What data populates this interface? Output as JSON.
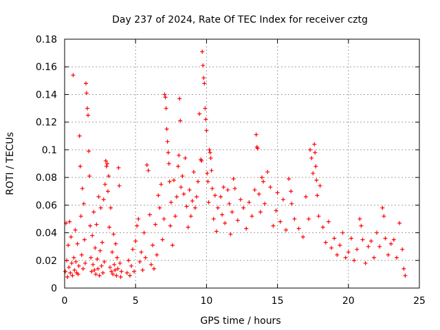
{
  "chart_data": {
    "type": "scatter",
    "title": "Day 237 of 2024, Rate Of TEC Index for receiver cztg",
    "xlabel": "GPS time / hours",
    "ylabel": "ROTI / TECUs",
    "xlim": [
      0,
      25
    ],
    "ylim": [
      0,
      0.18
    ],
    "xticks": [
      0,
      5,
      10,
      15,
      20,
      25
    ],
    "xtick_labels": [
      "0",
      "5",
      "10",
      "15",
      "20",
      "25"
    ],
    "yticks": [
      0,
      0.02,
      0.04,
      0.06,
      0.08,
      0.1,
      0.12,
      0.14,
      0.16,
      0.18
    ],
    "ytick_labels": [
      "0",
      "0.02",
      "0.04",
      "0.06",
      "0.08",
      "0.1",
      "0.12",
      "0.14",
      "0.16",
      "0.18"
    ],
    "grid": true,
    "marker": "+",
    "color": "#ff0000",
    "series": [
      {
        "name": "ROTI",
        "points": [
          [
            0.05,
            0.012
          ],
          [
            0.1,
            0.047
          ],
          [
            0.15,
            0.02
          ],
          [
            0.2,
            0.008
          ],
          [
            0.25,
            0.031
          ],
          [
            0.3,
            0.015
          ],
          [
            0.35,
            0.048
          ],
          [
            0.4,
            0.011
          ],
          [
            0.45,
            0.037
          ],
          [
            0.5,
            0.018
          ],
          [
            0.55,
            0.009
          ],
          [
            0.6,
            0.154
          ],
          [
            0.65,
            0.022
          ],
          [
            0.7,
            0.013
          ],
          [
            0.75,
            0.042
          ],
          [
            0.8,
            0.019
          ],
          [
            0.85,
            0.011
          ],
          [
            0.9,
            0.032
          ],
          [
            0.95,
            0.01
          ],
          [
            1.0,
            0.016
          ],
          [
            1.05,
            0.11
          ],
          [
            1.1,
            0.088
          ],
          [
            1.15,
            0.052
          ],
          [
            1.2,
            0.024
          ],
          [
            1.25,
            0.072
          ],
          [
            1.3,
            0.014
          ],
          [
            1.35,
            0.061
          ],
          [
            1.4,
            0.035
          ],
          [
            1.45,
            0.018
          ],
          [
            1.5,
            0.148
          ],
          [
            1.55,
            0.141
          ],
          [
            1.6,
            0.13
          ],
          [
            1.65,
            0.125
          ],
          [
            1.7,
            0.099
          ],
          [
            1.75,
            0.081
          ],
          [
            1.8,
            0.045
          ],
          [
            1.85,
            0.022
          ],
          [
            1.9,
            0.012
          ],
          [
            1.95,
            0.038
          ],
          [
            2.0,
            0.017
          ],
          [
            2.05,
            0.055
          ],
          [
            2.1,
            0.013
          ],
          [
            2.15,
            0.029
          ],
          [
            2.2,
            0.01
          ],
          [
            2.25,
            0.046
          ],
          [
            2.3,
            0.021
          ],
          [
            2.35,
            0.014
          ],
          [
            2.4,
            0.066
          ],
          [
            2.45,
            0.009
          ],
          [
            2.5,
            0.027
          ],
          [
            2.55,
            0.058
          ],
          [
            2.6,
            0.016
          ],
          [
            2.65,
            0.033
          ],
          [
            2.7,
            0.011
          ],
          [
            2.75,
            0.064
          ],
          [
            2.8,
            0.019
          ],
          [
            2.85,
            0.075
          ],
          [
            2.9,
            0.092
          ],
          [
            2.95,
            0.088
          ],
          [
            3.0,
            0.09
          ],
          [
            3.05,
            0.07
          ],
          [
            3.1,
            0.081
          ],
          [
            3.15,
            0.044
          ],
          [
            3.2,
            0.015
          ],
          [
            3.25,
            0.058
          ],
          [
            3.3,
            0.012
          ],
          [
            3.35,
            0.026
          ],
          [
            3.4,
            0.01
          ],
          [
            3.45,
            0.039
          ],
          [
            3.5,
            0.017
          ],
          [
            3.55,
            0.013
          ],
          [
            3.6,
            0.032
          ],
          [
            3.65,
            0.009
          ],
          [
            3.7,
            0.022
          ],
          [
            3.75,
            0.014
          ],
          [
            3.8,
            0.087
          ],
          [
            3.85,
            0.074
          ],
          [
            3.9,
            0.018
          ],
          [
            3.95,
            0.008
          ],
          [
            4.0,
            0.012
          ],
          [
            4.4,
            0.011
          ],
          [
            4.5,
            0.02
          ],
          [
            4.6,
            0.009
          ],
          [
            4.7,
            0.016
          ],
          [
            4.8,
            0.028
          ],
          [
            4.9,
            0.012
          ],
          [
            5.0,
            0.034
          ],
          [
            5.1,
            0.045
          ],
          [
            5.2,
            0.05
          ],
          [
            5.3,
            0.019
          ],
          [
            5.4,
            0.026
          ],
          [
            5.5,
            0.013
          ],
          [
            5.6,
            0.04
          ],
          [
            5.7,
            0.022
          ],
          [
            5.8,
            0.089
          ],
          [
            5.9,
            0.085
          ],
          [
            6.0,
            0.053
          ],
          [
            6.1,
            0.017
          ],
          [
            6.2,
            0.031
          ],
          [
            6.3,
            0.014
          ],
          [
            6.4,
            0.046
          ],
          [
            6.5,
            0.024
          ],
          [
            6.6,
            0.067
          ],
          [
            6.7,
            0.058
          ],
          [
            6.8,
            0.075
          ],
          [
            6.9,
            0.035
          ],
          [
            7.0,
            0.05
          ],
          [
            7.05,
            0.14
          ],
          [
            7.1,
            0.138
          ],
          [
            7.15,
            0.13
          ],
          [
            7.2,
            0.115
          ],
          [
            7.25,
            0.106
          ],
          [
            7.3,
            0.098
          ],
          [
            7.35,
            0.09
          ],
          [
            7.4,
            0.077
          ],
          [
            7.45,
            0.045
          ],
          [
            7.5,
            0.062
          ],
          [
            7.6,
            0.031
          ],
          [
            7.7,
            0.078
          ],
          [
            7.8,
            0.052
          ],
          [
            7.9,
            0.066
          ],
          [
            8.0,
            0.088
          ],
          [
            8.05,
            0.096
          ],
          [
            8.1,
            0.137
          ],
          [
            8.15,
            0.121
          ],
          [
            8.2,
            0.073
          ],
          [
            8.3,
            0.081
          ],
          [
            8.4,
            0.068
          ],
          [
            8.5,
            0.094
          ],
          [
            8.6,
            0.059
          ],
          [
            8.7,
            0.044
          ],
          [
            8.8,
            0.071
          ],
          [
            8.9,
            0.052
          ],
          [
            9.0,
            0.063
          ],
          [
            9.1,
            0.084
          ],
          [
            9.2,
            0.058
          ],
          [
            9.3,
            0.066
          ],
          [
            9.4,
            0.077
          ],
          [
            9.5,
            0.126
          ],
          [
            9.6,
            0.093
          ],
          [
            9.65,
            0.092
          ],
          [
            9.7,
            0.171
          ],
          [
            9.75,
            0.161
          ],
          [
            9.8,
            0.152
          ],
          [
            9.85,
            0.148
          ],
          [
            9.9,
            0.13
          ],
          [
            9.95,
            0.122
          ],
          [
            10.0,
            0.114
          ],
          [
            10.05,
            0.083
          ],
          [
            10.1,
            0.077
          ],
          [
            10.15,
            0.062
          ],
          [
            10.2,
            0.1
          ],
          [
            10.25,
            0.098
          ],
          [
            10.3,
            0.094
          ],
          [
            10.35,
            0.085
          ],
          [
            10.4,
            0.072
          ],
          [
            10.5,
            0.05
          ],
          [
            10.6,
            0.067
          ],
          [
            10.7,
            0.041
          ],
          [
            10.8,
            0.058
          ],
          [
            11.0,
            0.066
          ],
          [
            11.1,
            0.053
          ],
          [
            11.2,
            0.073
          ],
          [
            11.3,
            0.047
          ],
          [
            11.5,
            0.071
          ],
          [
            11.6,
            0.061
          ],
          [
            11.7,
            0.039
          ],
          [
            11.8,
            0.055
          ],
          [
            11.9,
            0.079
          ],
          [
            12.0,
            0.072
          ],
          [
            12.2,
            0.049
          ],
          [
            12.4,
            0.064
          ],
          [
            12.6,
            0.058
          ],
          [
            12.8,
            0.043
          ],
          [
            13.0,
            0.062
          ],
          [
            13.2,
            0.052
          ],
          [
            13.4,
            0.071
          ],
          [
            13.5,
            0.111
          ],
          [
            13.55,
            0.102
          ],
          [
            13.6,
            0.101
          ],
          [
            13.7,
            0.068
          ],
          [
            13.8,
            0.055
          ],
          [
            13.9,
            0.08
          ],
          [
            14.0,
            0.077
          ],
          [
            14.1,
            0.061
          ],
          [
            14.3,
            0.084
          ],
          [
            14.5,
            0.073
          ],
          [
            14.7,
            0.045
          ],
          [
            14.9,
            0.056
          ],
          [
            15.0,
            0.069
          ],
          [
            15.2,
            0.048
          ],
          [
            15.4,
            0.064
          ],
          [
            15.6,
            0.042
          ],
          [
            15.8,
            0.079
          ],
          [
            15.95,
            0.07
          ],
          [
            16.0,
            0.061
          ],
          [
            16.2,
            0.05
          ],
          [
            16.5,
            0.043
          ],
          [
            16.8,
            0.037
          ],
          [
            17.0,
            0.066
          ],
          [
            17.2,
            0.05
          ],
          [
            17.3,
            0.1
          ],
          [
            17.4,
            0.094
          ],
          [
            17.5,
            0.083
          ],
          [
            17.6,
            0.104
          ],
          [
            17.65,
            0.098
          ],
          [
            17.7,
            0.088
          ],
          [
            17.75,
            0.078
          ],
          [
            17.8,
            0.067
          ],
          [
            17.9,
            0.052
          ],
          [
            18.0,
            0.074
          ],
          [
            18.2,
            0.044
          ],
          [
            18.4,
            0.033
          ],
          [
            18.6,
            0.048
          ],
          [
            18.8,
            0.029
          ],
          [
            19.0,
            0.036
          ],
          [
            19.2,
            0.024
          ],
          [
            19.4,
            0.031
          ],
          [
            19.6,
            0.04
          ],
          [
            19.8,
            0.022
          ],
          [
            20.0,
            0.026
          ],
          [
            20.2,
            0.036
          ],
          [
            20.4,
            0.02
          ],
          [
            20.6,
            0.028
          ],
          [
            20.8,
            0.05
          ],
          [
            20.9,
            0.045
          ],
          [
            21.0,
            0.035
          ],
          [
            21.2,
            0.018
          ],
          [
            21.4,
            0.03
          ],
          [
            21.6,
            0.034
          ],
          [
            21.8,
            0.022
          ],
          [
            22.0,
            0.04
          ],
          [
            22.2,
            0.03
          ],
          [
            22.4,
            0.058
          ],
          [
            22.5,
            0.052
          ],
          [
            22.6,
            0.036
          ],
          [
            22.8,
            0.024
          ],
          [
            23.0,
            0.032
          ],
          [
            23.2,
            0.035
          ],
          [
            23.4,
            0.022
          ],
          [
            23.6,
            0.047
          ],
          [
            23.8,
            0.028
          ],
          [
            23.9,
            0.014
          ],
          [
            24.0,
            0.009
          ]
        ]
      }
    ]
  }
}
